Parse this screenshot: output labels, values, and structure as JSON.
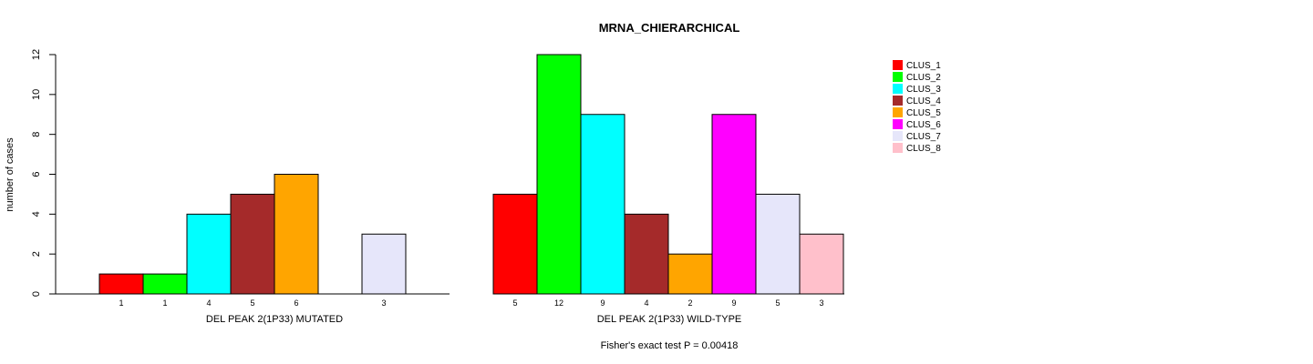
{
  "chart_data": {
    "type": "bar",
    "title": "MRNA_CHIERARCHICAL",
    "ylabel": "number of cases",
    "ylim": [
      0,
      12
    ],
    "yticks": [
      0,
      2,
      4,
      6,
      8,
      10,
      12
    ],
    "footnote": "Fisher's exact test P = 0.00418",
    "panels": [
      {
        "xlabel": "DEL PEAK  2(1P33) MUTATED",
        "bars": [
          {
            "cluster": "CLUS_1",
            "value": 1,
            "label": "1"
          },
          {
            "cluster": "CLUS_2",
            "value": 1,
            "label": "1"
          },
          {
            "cluster": "CLUS_3",
            "value": 4,
            "label": "4"
          },
          {
            "cluster": "CLUS_4",
            "value": 5,
            "label": "5"
          },
          {
            "cluster": "CLUS_5",
            "value": 6,
            "label": "6"
          },
          {
            "cluster": "CLUS_6",
            "value": 0,
            "label": ""
          },
          {
            "cluster": "CLUS_7",
            "value": 3,
            "label": "3"
          },
          {
            "cluster": "CLUS_8",
            "value": 0,
            "label": ""
          }
        ]
      },
      {
        "xlabel": "DEL PEAK  2(1P33) WILD-TYPE",
        "bars": [
          {
            "cluster": "CLUS_1",
            "value": 5,
            "label": "5"
          },
          {
            "cluster": "CLUS_2",
            "value": 12,
            "label": "12"
          },
          {
            "cluster": "CLUS_3",
            "value": 9,
            "label": "9"
          },
          {
            "cluster": "CLUS_4",
            "value": 4,
            "label": "4"
          },
          {
            "cluster": "CLUS_5",
            "value": 2,
            "label": "2"
          },
          {
            "cluster": "CLUS_6",
            "value": 9,
            "label": "9"
          },
          {
            "cluster": "CLUS_7",
            "value": 5,
            "label": "5"
          },
          {
            "cluster": "CLUS_8",
            "value": 3,
            "label": "3"
          }
        ]
      }
    ],
    "legend": {
      "position": "top-right",
      "entries": [
        {
          "name": "CLUS_1",
          "color": "#ff0000"
        },
        {
          "name": "CLUS_2",
          "color": "#00ff00"
        },
        {
          "name": "CLUS_3",
          "color": "#00ffff"
        },
        {
          "name": "CLUS_4",
          "color": "#a52a2a"
        },
        {
          "name": "CLUS_5",
          "color": "#ffa500"
        },
        {
          "name": "CLUS_6",
          "color": "#ff00ff"
        },
        {
          "name": "CLUS_7",
          "color": "#e6e6fa"
        },
        {
          "name": "CLUS_8",
          "color": "#ffc0cb"
        }
      ]
    }
  }
}
